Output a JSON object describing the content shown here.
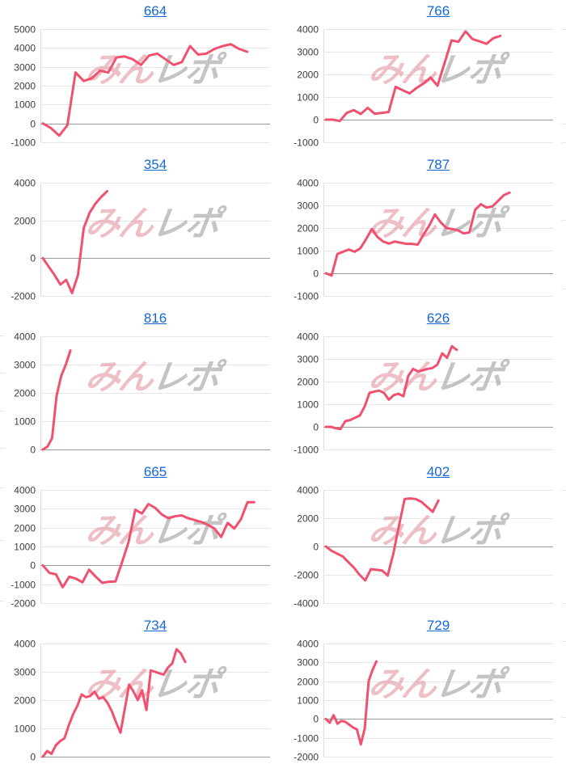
{
  "watermark": {
    "pink": "みん",
    "gray": "レポ"
  },
  "colors": {
    "background": "#ffffff",
    "line": "#f0516f",
    "title_link": "#1667d3",
    "grid_line": "#e6e6e6",
    "zero_line": "#9a9a9a",
    "axis_line": "#dddddd",
    "tick_text": "#3d3d3d",
    "watermark_pink": "rgba(224,128,142,0.5)",
    "watermark_gray": "rgba(148,148,148,0.55)"
  },
  "chart_style": {
    "grid": true,
    "legend": false,
    "x_tick_labels": false,
    "line_width": 3
  },
  "chart_data": [
    {
      "type": "line",
      "title": "664",
      "ylim": [
        -1000,
        5000
      ],
      "y_tick_step": 1000,
      "x_span": 0.89,
      "values": [
        0,
        -250,
        -650,
        -100,
        2700,
        2250,
        2400,
        2800,
        2700,
        3500,
        3550,
        3400,
        3100,
        3600,
        3700,
        3400,
        3100,
        3250,
        4100,
        3650,
        3700,
        3950,
        4100,
        4200,
        3950,
        3800
      ]
    },
    {
      "type": "line",
      "title": "766",
      "ylim": [
        -1000,
        4000
      ],
      "y_tick_step": 1000,
      "x_span": 0.76,
      "values": [
        0,
        0,
        -60,
        300,
        420,
        250,
        520,
        260,
        300,
        340,
        1450,
        1300,
        1160,
        1400,
        1600,
        1860,
        1500,
        2500,
        3500,
        3440,
        3900,
        3560,
        3460,
        3350,
        3600,
        3700
      ]
    },
    {
      "type": "line",
      "title": "354",
      "ylim": [
        -2000,
        4000
      ],
      "y_tick_step": 2000,
      "x_span": 0.28,
      "values": [
        0,
        -450,
        -900,
        -1400,
        -1150,
        -1850,
        -900,
        1600,
        2400,
        2900,
        3250,
        3550
      ]
    },
    {
      "type": "line",
      "title": "787",
      "ylim": [
        -1000,
        4000
      ],
      "y_tick_step": 1000,
      "x_span": 0.8,
      "values": [
        0,
        -100,
        850,
        950,
        1050,
        950,
        1100,
        1500,
        1950,
        1600,
        1400,
        1310,
        1400,
        1350,
        1300,
        1300,
        1260,
        1700,
        2100,
        2600,
        2250,
        2000,
        1950,
        1900,
        1760,
        1800,
        2800,
        3050,
        2900,
        2950,
        3200,
        3450,
        3560
      ]
    },
    {
      "type": "line",
      "title": "816",
      "ylim": [
        0,
        4000
      ],
      "y_tick_step": 1000,
      "x_span": 0.12,
      "values": [
        0,
        100,
        400,
        1900,
        2600,
        3000,
        3500
      ]
    },
    {
      "type": "line",
      "title": "626",
      "ylim": [
        -1000,
        4000
      ],
      "y_tick_step": 1000,
      "x_span": 0.57,
      "values": [
        0,
        0,
        -60,
        -100,
        250,
        300,
        400,
        500,
        900,
        1500,
        1560,
        1600,
        1500,
        1200,
        1400,
        1460,
        1350,
        2250,
        2560,
        2450,
        2500,
        2560,
        2600,
        2750,
        3250,
        3050,
        3560,
        3400
      ]
    },
    {
      "type": "line",
      "title": "665",
      "ylim": [
        -2000,
        4000
      ],
      "y_tick_step": 1000,
      "x_span": 0.92,
      "values": [
        0,
        -400,
        -480,
        -1160,
        -600,
        -700,
        -900,
        -230,
        -600,
        -930,
        -870,
        -850,
        170,
        1250,
        2950,
        2750,
        3250,
        3050,
        2700,
        2500,
        2600,
        2650,
        2500,
        2400,
        2300,
        2150,
        1950,
        1500,
        2250,
        1950,
        2450,
        3350,
        3350
      ]
    },
    {
      "type": "line",
      "title": "402",
      "ylim": [
        -4000,
        4000
      ],
      "y_tick_step": 2000,
      "x_span": 0.49,
      "values": [
        0,
        -300,
        -500,
        -700,
        -1100,
        -1500,
        -2000,
        -2400,
        -1600,
        -1650,
        -1700,
        -2050,
        -500,
        1500,
        3350,
        3400,
        3350,
        3150,
        2800,
        2450,
        3250
      ]
    },
    {
      "type": "line",
      "title": "734",
      "ylim": [
        0,
        4000
      ],
      "y_tick_step": 1000,
      "x_span": 0.62,
      "values": [
        0,
        200,
        100,
        400,
        550,
        650,
        1100,
        1500,
        1800,
        2200,
        2100,
        2150,
        2300,
        2050,
        2100,
        1900,
        1600,
        1200,
        850,
        1700,
        2550,
        2300,
        2000,
        2350,
        1650,
        3050,
        3000,
        2950,
        2900,
        3150,
        3300,
        3800,
        3650,
        3350
      ]
    },
    {
      "type": "line",
      "title": "729",
      "ylim": [
        -2000,
        4000
      ],
      "y_tick_step": 1000,
      "x_span": 0.22,
      "values": [
        0,
        -200,
        200,
        -250,
        -100,
        -150,
        -300,
        -450,
        -550,
        -1350,
        -500,
        2000,
        2600,
        3050
      ]
    }
  ]
}
